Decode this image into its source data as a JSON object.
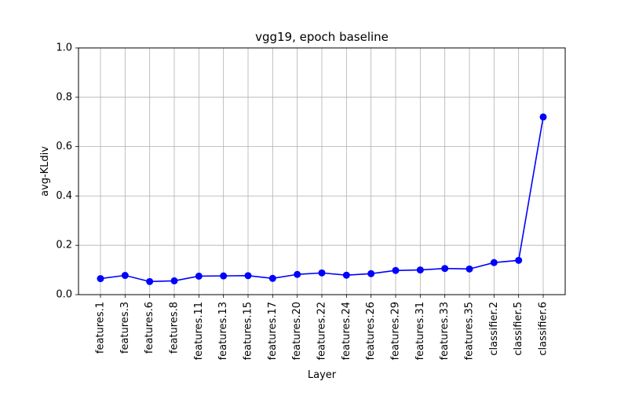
{
  "chart_data": {
    "type": "line",
    "title": "vgg19, epoch baseline",
    "xlabel": "Layer",
    "ylabel": "avg-KLdiv",
    "ylim": [
      0.0,
      1.0
    ],
    "yticks": [
      "0.0",
      "0.2",
      "0.4",
      "0.6",
      "0.8",
      "1.0"
    ],
    "grid": true,
    "categories": [
      "features.1",
      "features.3",
      "features.6",
      "features.8",
      "features.11",
      "features.13",
      "features.15",
      "features.17",
      "features.20",
      "features.22",
      "features.24",
      "features.26",
      "features.29",
      "features.31",
      "features.33",
      "features.35",
      "classifier.2",
      "classifier.5",
      "classifier.6"
    ],
    "series": [
      {
        "values": [
          0.065,
          0.078,
          0.053,
          0.056,
          0.075,
          0.076,
          0.077,
          0.066,
          0.082,
          0.088,
          0.079,
          0.085,
          0.098,
          0.1,
          0.106,
          0.104,
          0.13,
          0.139,
          0.72
        ],
        "color": "#0000ff",
        "marker": "circle"
      }
    ]
  }
}
